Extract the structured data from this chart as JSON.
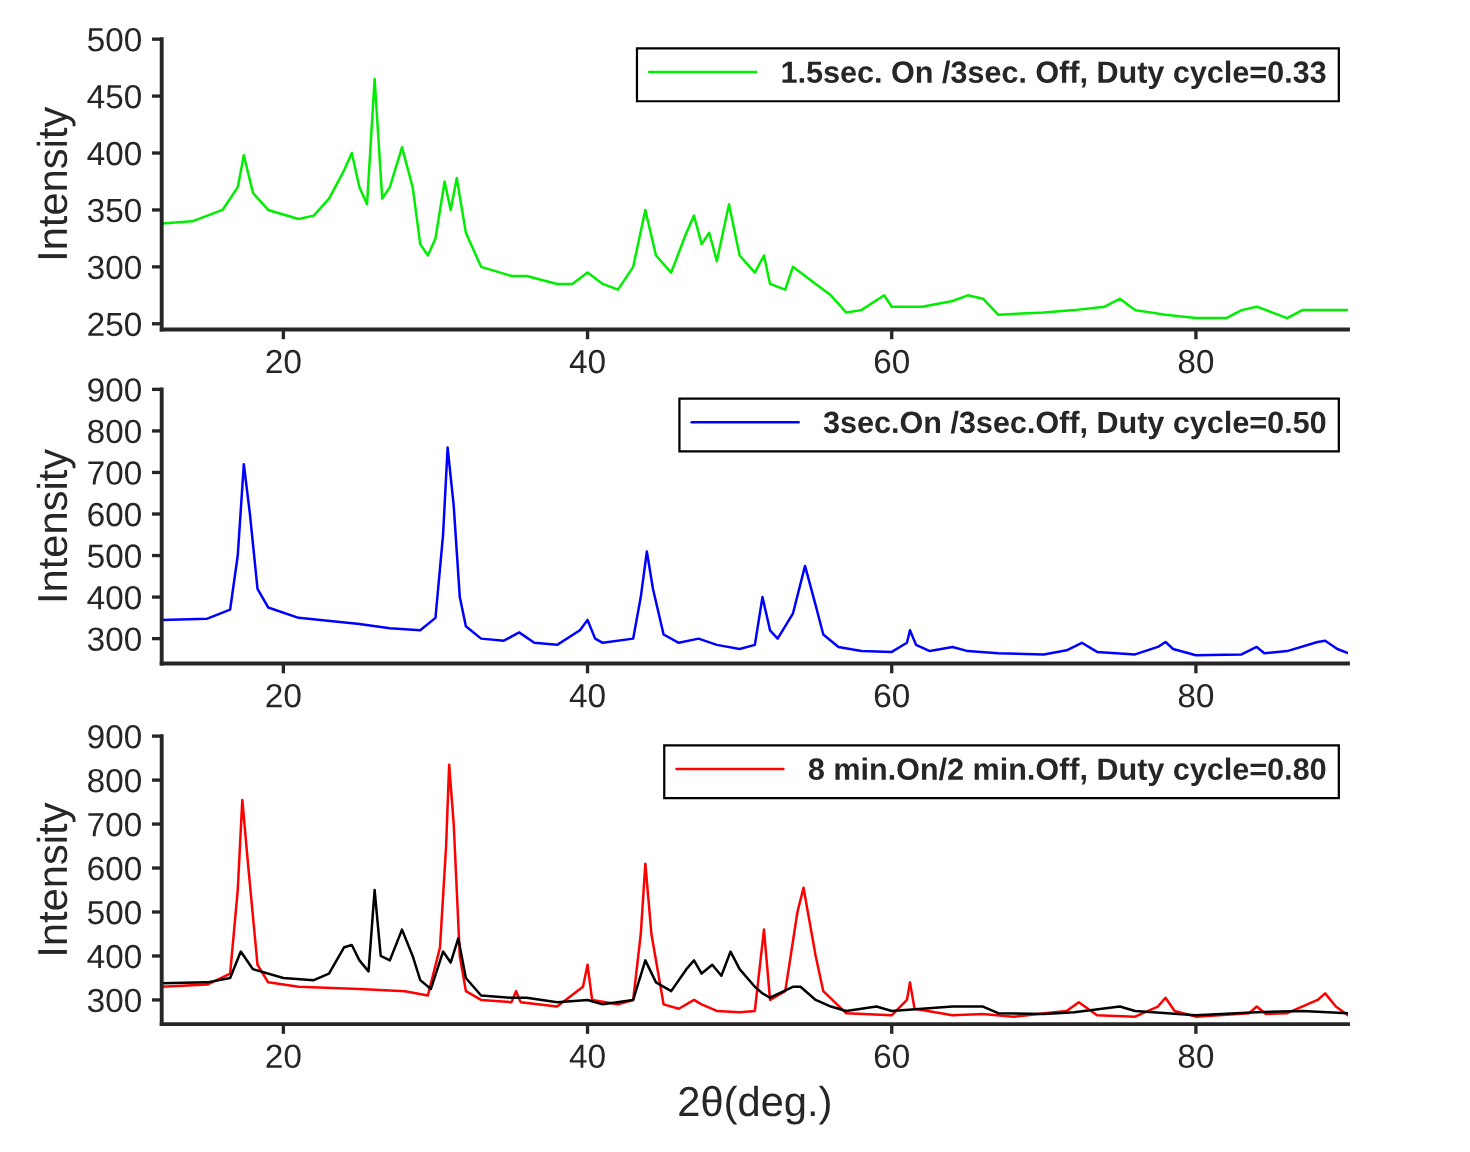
{
  "chart_data": [
    {
      "type": "line",
      "ylabel": "Intensity",
      "xlim": [
        12,
        90
      ],
      "xticks": [
        20,
        40,
        60,
        80
      ],
      "ylim": [
        245,
        500
      ],
      "yticks": [
        250,
        300,
        350,
        400,
        450,
        500
      ],
      "legend": "top right",
      "grid": false,
      "series": [
        {
          "name": "1.5sec. On /3sec. Off, Duty cycle=0.33",
          "color": "#00ee00",
          "x": [
            12,
            14,
            16,
            17,
            17.4,
            18,
            19,
            21,
            22,
            23,
            24,
            24.5,
            25,
            25.5,
            26,
            26.5,
            27,
            27.8,
            28.5,
            29,
            29.5,
            30,
            30.6,
            31,
            31.4,
            32,
            33,
            35,
            36,
            38,
            39,
            40,
            41,
            42,
            43,
            43.8,
            44.5,
            45.5,
            46.5,
            47,
            47.5,
            48,
            48.5,
            49.3,
            50,
            51,
            51.6,
            52,
            53,
            53.5,
            54,
            55,
            56,
            57,
            58,
            59.5,
            60,
            62,
            64,
            65,
            66,
            67,
            70,
            72,
            74,
            75,
            76,
            78,
            80,
            82,
            83,
            84,
            85,
            86,
            87,
            90
          ],
          "values": [
            338,
            340,
            350,
            370,
            398,
            365,
            350,
            342,
            345,
            360,
            385,
            400,
            370,
            355,
            465,
            360,
            370,
            405,
            370,
            320,
            310,
            325,
            375,
            350,
            378,
            330,
            300,
            292,
            292,
            285,
            285,
            295,
            285,
            280,
            300,
            350,
            310,
            295,
            330,
            345,
            320,
            330,
            305,
            355,
            310,
            295,
            310,
            285,
            280,
            300,
            295,
            285,
            275,
            260,
            262,
            275,
            265,
            265,
            270,
            275,
            272,
            258,
            260,
            262,
            265,
            272,
            262,
            258,
            255,
            255,
            262,
            265,
            260,
            255,
            262,
            262
          ]
        }
      ]
    },
    {
      "type": "line",
      "ylabel": "Intensity",
      "xlim": [
        12,
        90
      ],
      "xticks": [
        20,
        40,
        60,
        80
      ],
      "ylim": [
        240,
        900
      ],
      "yticks": [
        300,
        400,
        500,
        600,
        700,
        800,
        900
      ],
      "legend": "top right",
      "grid": false,
      "series": [
        {
          "name": "3sec.On /3sec.Off, Duty cycle=0.50",
          "color": "#0000ff",
          "x": [
            12,
            15,
            16.5,
            17,
            17.4,
            17.8,
            18.3,
            19,
            21,
            25,
            27,
            29,
            30,
            30.5,
            30.8,
            31.2,
            31.6,
            32,
            33,
            34.5,
            35.5,
            36.5,
            38,
            39.5,
            40,
            40.5,
            41,
            43,
            43.5,
            43.9,
            44.3,
            45,
            46,
            47.3,
            48.5,
            50,
            51,
            51.5,
            52,
            52.5,
            53.5,
            54.3,
            55,
            55.5,
            56.5,
            58,
            60,
            61,
            61.2,
            61.6,
            62.5,
            64,
            65,
            67,
            70,
            71.5,
            72.5,
            73.5,
            76,
            77.5,
            78,
            78.5,
            80,
            83,
            84,
            84.5,
            86,
            88,
            88.5,
            89.3,
            90
          ],
          "values": [
            345,
            348,
            370,
            500,
            720,
            600,
            420,
            375,
            350,
            335,
            325,
            320,
            350,
            550,
            760,
            620,
            400,
            330,
            300,
            295,
            315,
            290,
            285,
            320,
            345,
            300,
            290,
            300,
            400,
            510,
            420,
            310,
            290,
            300,
            285,
            275,
            285,
            400,
            320,
            300,
            360,
            475,
            380,
            310,
            280,
            270,
            268,
            290,
            320,
            285,
            270,
            280,
            270,
            265,
            262,
            272,
            290,
            268,
            262,
            280,
            292,
            275,
            260,
            262,
            280,
            265,
            270,
            292,
            295,
            275,
            265
          ]
        }
      ]
    },
    {
      "type": "line",
      "xlabel": "2θ(deg.)",
      "ylabel": "Intensity",
      "xlim": [
        12,
        90
      ],
      "xticks": [
        20,
        40,
        60,
        80
      ],
      "ylim": [
        245,
        900
      ],
      "yticks": [
        300,
        400,
        500,
        600,
        700,
        800,
        900
      ],
      "legend": "top right",
      "grid": false,
      "series": [
        {
          "name": "8 min.On/2 min.Off, Duty cycle=0.80",
          "color": "#ff0000",
          "x": [
            12,
            15,
            16.5,
            17,
            17.3,
            17.7,
            18.3,
            19,
            21,
            25,
            28,
            29.5,
            30.3,
            30.7,
            30.9,
            31.2,
            31.6,
            32,
            33,
            35,
            35.3,
            35.6,
            38,
            39.7,
            40,
            40.3,
            42,
            43,
            43.5,
            43.8,
            44.2,
            45,
            46,
            47,
            47.5,
            48.5,
            50,
            51,
            51.6,
            52,
            53,
            53.8,
            54.2,
            55,
            55.5,
            57,
            60,
            61,
            61.2,
            61.5,
            64,
            66,
            68,
            71.5,
            72.3,
            73.5,
            76,
            77.5,
            78,
            78.6,
            80,
            83.5,
            84,
            84.6,
            86,
            88,
            88.5,
            89.2,
            90
          ],
          "values": [
            330,
            335,
            360,
            550,
            755,
            600,
            380,
            340,
            330,
            325,
            320,
            310,
            420,
            650,
            835,
            700,
            400,
            320,
            300,
            295,
            320,
            295,
            285,
            330,
            380,
            300,
            290,
            300,
            450,
            610,
            450,
            290,
            280,
            300,
            290,
            275,
            272,
            275,
            460,
            300,
            320,
            500,
            555,
            400,
            320,
            270,
            265,
            300,
            340,
            280,
            265,
            268,
            262,
            275,
            295,
            265,
            262,
            285,
            305,
            275,
            262,
            270,
            285,
            268,
            270,
            300,
            315,
            285,
            265
          ]
        },
        {
          "color": "#000000",
          "x": [
            12,
            15,
            16.5,
            17.2,
            18,
            20,
            22,
            23,
            24,
            24.5,
            25,
            25.6,
            26,
            26.4,
            27,
            27.8,
            28.5,
            29,
            29.7,
            30.5,
            31,
            31.5,
            32,
            33,
            35,
            36,
            38,
            40,
            41,
            43,
            43.8,
            44.5,
            45.5,
            46.5,
            47,
            47.5,
            48.2,
            48.8,
            49.4,
            50,
            51,
            51.5,
            52,
            53.5,
            54,
            55,
            56,
            57,
            59,
            60,
            62,
            64,
            66,
            67,
            70,
            72,
            75,
            76,
            80,
            84,
            87,
            90
          ],
          "values": [
            338,
            340,
            350,
            410,
            370,
            350,
            345,
            360,
            420,
            425,
            390,
            365,
            550,
            400,
            390,
            460,
            400,
            345,
            325,
            410,
            385,
            440,
            350,
            310,
            305,
            305,
            295,
            300,
            290,
            300,
            390,
            340,
            320,
            370,
            390,
            360,
            380,
            355,
            410,
            370,
            330,
            315,
            305,
            330,
            330,
            300,
            285,
            275,
            285,
            275,
            280,
            285,
            285,
            270,
            268,
            272,
            285,
            275,
            265,
            272,
            275,
            270
          ]
        }
      ]
    }
  ]
}
